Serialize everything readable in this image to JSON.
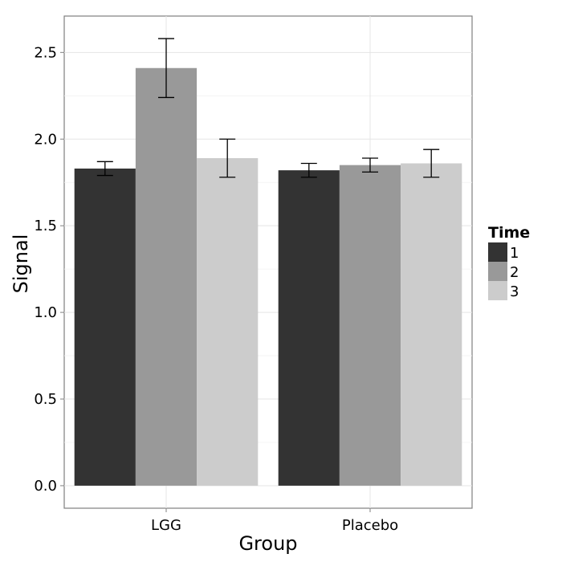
{
  "chart_data": {
    "type": "bar",
    "categories": [
      "LGG",
      "Placebo"
    ],
    "series": [
      {
        "name": "1",
        "values": [
          1.83,
          1.82
        ],
        "error_low": [
          1.79,
          1.78
        ],
        "error_high": [
          1.87,
          1.86
        ]
      },
      {
        "name": "2",
        "values": [
          2.41,
          1.85
        ],
        "error_low": [
          2.24,
          1.81
        ],
        "error_high": [
          2.58,
          1.89
        ]
      },
      {
        "name": "3",
        "values": [
          1.89,
          1.86
        ],
        "error_low": [
          1.78,
          1.78
        ],
        "error_high": [
          2.0,
          1.94
        ]
      }
    ],
    "xlabel": "Group",
    "ylabel": "Signal",
    "ylim": [
      -0.13,
      2.71
    ],
    "yticks": [
      "0.0",
      "0.5",
      "1.0",
      "1.5",
      "2.0",
      "2.5"
    ],
    "legend": {
      "title": "Time",
      "placement": "right"
    },
    "colors": {
      "1": "#333333",
      "2": "#999999",
      "3": "#cccccc"
    },
    "grid": true
  }
}
